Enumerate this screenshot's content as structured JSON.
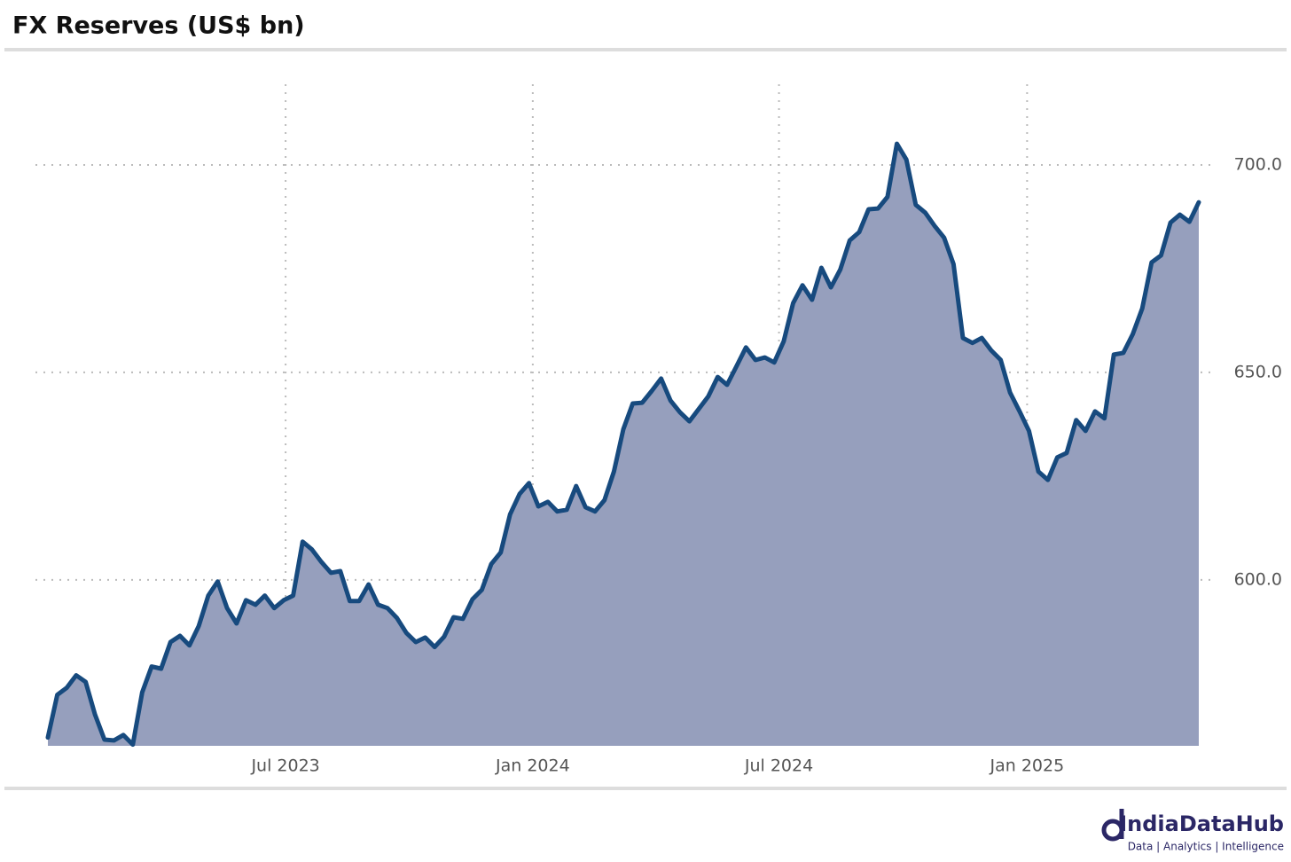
{
  "chart_data": {
    "type": "area",
    "title": "FX Reserves (US$ bn)",
    "values": [
      562.0,
      572.3,
      574.0,
      577.0,
      575.4,
      567.5,
      561.5,
      561.3,
      562.6,
      560.3,
      572.9,
      579.1,
      578.6,
      585.0,
      586.5,
      584.2,
      588.9,
      596.2,
      599.6,
      593.2,
      589.5,
      595.1,
      594.0,
      596.2,
      593.2,
      595.1,
      596.2,
      609.2,
      607.3,
      604.3,
      601.7,
      602.1,
      594.9,
      594.9,
      598.9,
      594.0,
      593.2,
      590.8,
      587.2,
      585.0,
      586.1,
      583.8,
      586.3,
      591.0,
      590.6,
      595.3,
      597.6,
      603.8,
      606.6,
      615.8,
      620.7,
      623.3,
      617.7,
      618.8,
      616.5,
      616.9,
      622.6,
      617.5,
      616.5,
      619.2,
      626.1,
      636.3,
      642.5,
      642.7,
      645.5,
      648.5,
      643.2,
      640.4,
      638.2,
      641.2,
      644.2,
      648.9,
      647.0,
      651.5,
      656.0,
      653.0,
      653.6,
      652.4,
      657.5,
      666.7,
      671.0,
      667.5,
      675.2,
      670.5,
      674.8,
      681.8,
      683.8,
      689.3,
      689.5,
      692.3,
      705.1,
      701.3,
      690.4,
      688.5,
      685.3,
      682.5,
      676.1,
      658.3,
      657.1,
      658.3,
      655.3,
      653.0,
      645.1,
      640.6,
      635.9,
      626.1,
      624.1,
      629.5,
      630.6,
      638.5,
      635.9,
      640.6,
      638.9,
      654.3,
      654.7,
      659.2,
      665.4,
      676.5,
      678.2,
      686.1,
      688.0,
      686.3,
      691.0
    ],
    "line_color": "#174a7e",
    "fill_color": "#969fbd",
    "xlim": [
      0,
      122
    ],
    "xticks": [
      {
        "value": 25.2,
        "label": "Jul 2023"
      },
      {
        "value": 51.4,
        "label": "Jan 2024"
      },
      {
        "value": 77.5,
        "label": "Jul 2024"
      },
      {
        "value": 103.8,
        "label": "Jan 2025"
      }
    ],
    "ylim": [
      560,
      720
    ],
    "yticks": [
      {
        "value": 600,
        "label": "600.0"
      },
      {
        "value": 650,
        "label": "650.0"
      },
      {
        "value": 700,
        "label": "700.0"
      }
    ],
    "grid": true
  },
  "logo": {
    "name": "IndiaDataHub",
    "tagline": "Data | Analytics | Intelligence"
  }
}
